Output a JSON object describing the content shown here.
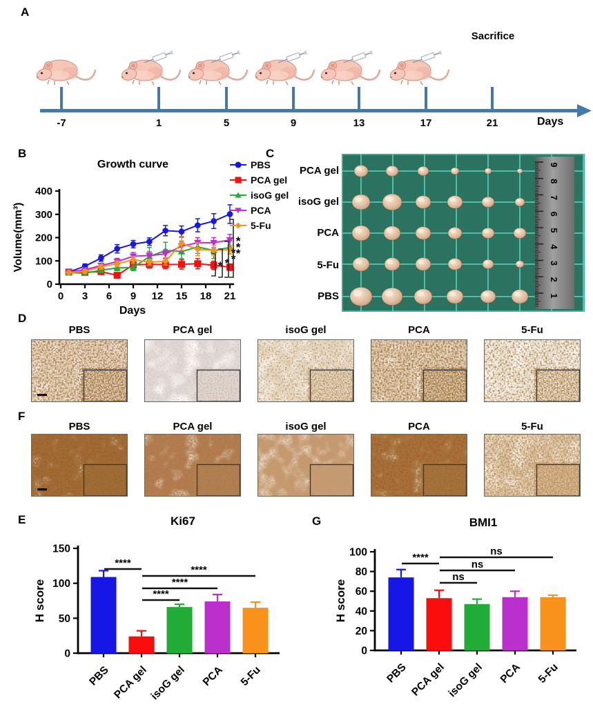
{
  "panel_letters": {
    "a": "A",
    "b": "B",
    "c": "C",
    "d": "D",
    "e": "E",
    "f": "F",
    "g": "G"
  },
  "timeline": {
    "sacrifice_label": "Sacrifice",
    "axis_label": "Days",
    "tick_labels": [
      "-7",
      "1",
      "5",
      "9",
      "13",
      "17",
      "21"
    ],
    "mice_syringe": [
      false,
      true,
      true,
      true,
      true,
      true
    ],
    "arrow_color": "#4678aa",
    "mouse_body_color": "#f6c6b8"
  },
  "tumor_photo": {
    "mat_color": "#2c7260",
    "grid_color": "#52cdb4",
    "rows": [
      {
        "label": "PCA gel",
        "sizes": [
          10,
          9,
          8,
          6,
          5,
          4
        ]
      },
      {
        "label": "isoG gel",
        "sizes": [
          13,
          14,
          11,
          11,
          9,
          7
        ]
      },
      {
        "label": "PCA",
        "sizes": [
          13,
          12,
          11,
          10,
          9,
          9
        ]
      },
      {
        "label": "5-Fu",
        "sizes": [
          12,
          11,
          11,
          10,
          8,
          6
        ]
      },
      {
        "label": "PBS",
        "sizes": [
          16,
          15,
          13,
          12,
          11,
          12
        ]
      }
    ],
    "ruler_numbers": [
      "9",
      "8",
      "7",
      "6",
      "5",
      "4",
      "3",
      "2",
      "1"
    ]
  },
  "histology": {
    "d_images": [
      {
        "label": "PBS",
        "base": "#e7d4bd",
        "speckle": "#5f3110",
        "freq": 0.4,
        "mul": 3.0,
        "off": -1.25,
        "patch_off": -1.25,
        "scale_bar": true
      },
      {
        "label": "PCA gel",
        "base": "#e0d8d4",
        "speckle": "#93705c",
        "freq": 0.45,
        "mul": 2.4,
        "off": -1.3,
        "patch_off": -1.0,
        "scale_bar": false
      },
      {
        "label": "isoG gel",
        "base": "#e6d8c4",
        "speckle": "#6f3f16",
        "freq": 0.42,
        "mul": 2.6,
        "off": -1.28,
        "patch_off": -1.05,
        "scale_bar": false
      },
      {
        "label": "PCA",
        "base": "#e3d0b6",
        "speckle": "#5d300e",
        "freq": 0.4,
        "mul": 3.0,
        "off": -1.22,
        "patch_off": -1.2,
        "scale_bar": false
      },
      {
        "label": "5-Fu",
        "base": "#ece4d6",
        "speckle": "#69350f",
        "freq": 0.38,
        "mul": 2.8,
        "off": -1.25,
        "patch_off": -0.85,
        "scale_bar": false
      }
    ],
    "f_images": [
      {
        "label": "PBS",
        "base": "#a55c28",
        "speckle": "#55280a",
        "freq": 0.35,
        "mul": 3.4,
        "off": -1.0,
        "patch_off": -1.35,
        "scale_bar": true
      },
      {
        "label": "PCA gel",
        "base": "#b4754a",
        "speckle": "#6b3a16",
        "freq": 0.4,
        "mul": 3.0,
        "off": -1.1,
        "patch_off": -1.25,
        "scale_bar": false
      },
      {
        "label": "isoG gel",
        "base": "#c6976b",
        "speckle": "#8a5731",
        "freq": 0.42,
        "mul": 2.8,
        "off": -1.15,
        "patch_off": -1.1,
        "scale_bar": false
      },
      {
        "label": "PCA",
        "base": "#a95e2b",
        "speckle": "#5c2d0c",
        "freq": 0.35,
        "mul": 3.4,
        "off": -1.05,
        "patch_off": -1.3,
        "scale_bar": false
      },
      {
        "label": "5-Fu",
        "base": "#d9c5aa",
        "speckle": "#8a4e20",
        "freq": 0.4,
        "mul": 3.0,
        "off": -1.1,
        "patch_off": -0.8,
        "scale_bar": false
      }
    ]
  },
  "chart_data": [
    {
      "id": "growth_curve",
      "type": "line",
      "title": "Growth curve",
      "xlabel": "Days",
      "ylabel": "Volume(mm³)",
      "xlim": [
        0,
        22
      ],
      "ylim": [
        0,
        400
      ],
      "xticks": [
        0,
        3,
        6,
        9,
        12,
        15,
        18,
        21
      ],
      "yticks": [
        0,
        100,
        200,
        300,
        400
      ],
      "x": [
        1,
        3,
        5,
        7,
        9,
        11,
        13,
        15,
        17,
        19,
        21
      ],
      "grid": false,
      "legend_position": "outside-right-top",
      "series": [
        {
          "name": "PBS",
          "color": "#1616e6",
          "marker": "circle",
          "values": [
            52,
            77,
            112,
            152,
            172,
            183,
            230,
            226,
            253,
            271,
            301
          ],
          "errors": [
            8,
            10,
            14,
            18,
            16,
            16,
            22,
            24,
            28,
            32,
            40
          ]
        },
        {
          "name": "PCA gel",
          "color": "#fa0d0d",
          "marker": "square",
          "values": [
            52,
            51,
            54,
            38,
            83,
            85,
            84,
            85,
            88,
            81,
            73
          ],
          "errors": [
            6,
            8,
            10,
            8,
            14,
            16,
            18,
            20,
            22,
            18,
            14
          ]
        },
        {
          "name": "isoG gel",
          "color": "#21ab37",
          "marker": "triangle-up",
          "values": [
            50,
            47,
            60,
            70,
            72,
            118,
            145,
            140,
            160,
            145,
            158
          ],
          "errors": [
            6,
            8,
            10,
            12,
            14,
            40,
            35,
            30,
            28,
            35,
            28
          ]
        },
        {
          "name": "PCA",
          "color": "#bb2fcc",
          "marker": "triangle-down",
          "values": [
            52,
            62,
            80,
            97,
            120,
            123,
            130,
            163,
            178,
            178,
            190
          ],
          "errors": [
            6,
            8,
            10,
            14,
            16,
            16,
            18,
            22,
            22,
            22,
            24
          ]
        },
        {
          "name": "5-Fu",
          "color": "#f9921a",
          "marker": "diamond",
          "values": [
            50,
            55,
            75,
            88,
            105,
            95,
            98,
            175,
            150,
            145,
            148
          ],
          "errors": [
            6,
            8,
            10,
            12,
            14,
            12,
            16,
            30,
            28,
            22,
            18
          ]
        }
      ],
      "comparisons": [
        {
          "a": "PCA gel",
          "b": "5-Fu",
          "stars": "*",
          "color": "#f9921a"
        },
        {
          "a": "PCA gel",
          "b": "isoG gel",
          "stars": "*",
          "color": "#21ab37"
        },
        {
          "a": "PCA gel",
          "b": "PCA",
          "stars": "**",
          "color": "#bb2fcc"
        },
        {
          "a": "PCA gel",
          "b": "PBS",
          "stars": "***",
          "color": "#1616e6"
        }
      ]
    },
    {
      "id": "ki67",
      "type": "bar",
      "title": "Ki67",
      "xlabel": "",
      "ylabel": "H score",
      "ylim": [
        0,
        150
      ],
      "yticks": [
        0,
        50,
        100,
        150
      ],
      "categories": [
        "PBS",
        "PCA gel",
        "isoG gel",
        "PCA",
        "5-Fu"
      ],
      "values": [
        109,
        24,
        66,
        74,
        65
      ],
      "errors": [
        9,
        8,
        4,
        10,
        8
      ],
      "bar_colors": [
        "#1616e6",
        "#fa0d0d",
        "#21ab37",
        "#bb2fcc",
        "#f9921a"
      ],
      "comparisons": [
        {
          "a": "PBS",
          "b": "PCA gel",
          "label": "****"
        },
        {
          "a": "PCA gel",
          "b": "isoG gel",
          "label": "****"
        },
        {
          "a": "PCA gel",
          "b": "PCA",
          "label": "****"
        },
        {
          "a": "PCA gel",
          "b": "5-Fu",
          "label": "****"
        }
      ]
    },
    {
      "id": "bmi1",
      "type": "bar",
      "title": "BMI1",
      "xlabel": "",
      "ylabel": "H score",
      "ylim": [
        0,
        100
      ],
      "yticks": [
        0,
        20,
        40,
        60,
        80,
        100
      ],
      "categories": [
        "PBS",
        "PCA gel",
        "isoG gel",
        "PCA",
        "5-Fu"
      ],
      "values": [
        74,
        53,
        47,
        54,
        54
      ],
      "errors": [
        8,
        8,
        5,
        6,
        2
      ],
      "bar_colors": [
        "#1616e6",
        "#fa0d0d",
        "#21ab37",
        "#bb2fcc",
        "#f9921a"
      ],
      "comparisons": [
        {
          "a": "PBS",
          "b": "PCA gel",
          "label": "****"
        },
        {
          "a": "PCA gel",
          "b": "isoG gel",
          "label": "ns"
        },
        {
          "a": "PCA gel",
          "b": "PCA",
          "label": "ns"
        },
        {
          "a": "PCA gel",
          "b": "5-Fu",
          "label": "ns"
        }
      ]
    }
  ]
}
